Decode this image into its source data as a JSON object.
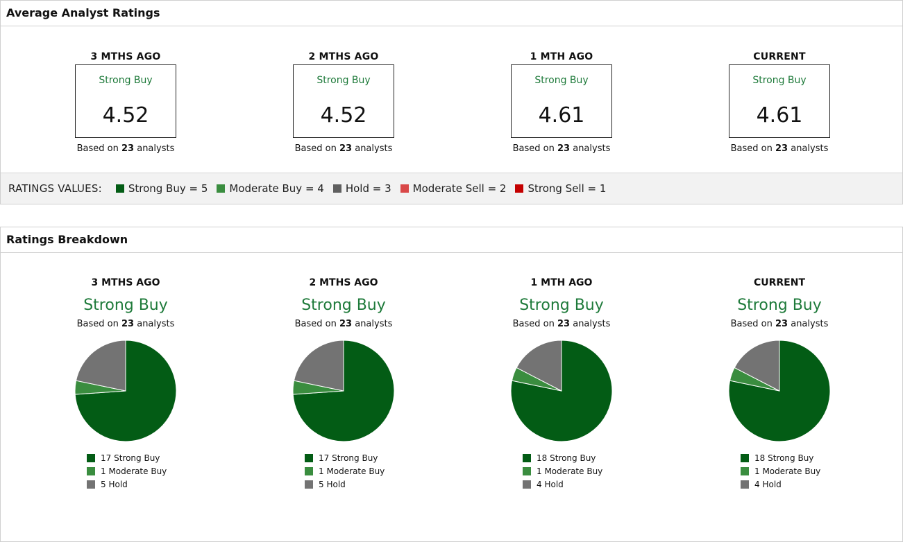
{
  "colors": {
    "strong_buy": "#035c15",
    "moderate_buy": "#3a8d3f",
    "hold": "#737373",
    "moderate_sell": "#d94848",
    "strong_sell": "#c40000",
    "accent_text": "#1e7a3a"
  },
  "avg_panel": {
    "title": "Average Analyst Ratings",
    "periods": [
      {
        "title": "3 MTHS AGO",
        "label": "Strong Buy",
        "score": "4.52",
        "based_prefix": "Based on ",
        "count": "23",
        "based_suffix": " analysts"
      },
      {
        "title": "2 MTHS AGO",
        "label": "Strong Buy",
        "score": "4.52",
        "based_prefix": "Based on ",
        "count": "23",
        "based_suffix": " analysts"
      },
      {
        "title": "1 MTH AGO",
        "label": "Strong Buy",
        "score": "4.61",
        "based_prefix": "Based on ",
        "count": "23",
        "based_suffix": " analysts"
      },
      {
        "title": "CURRENT",
        "label": "Strong Buy",
        "score": "4.61",
        "based_prefix": "Based on ",
        "count": "23",
        "based_suffix": " analysts"
      }
    ]
  },
  "ratings_values": {
    "title": "RATINGS VALUES:",
    "items": [
      {
        "label": "Strong Buy = 5",
        "color": "#035c15"
      },
      {
        "label": "Moderate Buy = 4",
        "color": "#3a8d3f"
      },
      {
        "label": "Hold = 3",
        "color": "#5f5f5f"
      },
      {
        "label": "Moderate Sell = 2",
        "color": "#d94848"
      },
      {
        "label": "Strong Sell = 1",
        "color": "#c40000"
      }
    ]
  },
  "breakdown_panel": {
    "title": "Ratings Breakdown",
    "periods": [
      {
        "title": "3 MTHS AGO",
        "label": "Strong Buy",
        "based_prefix": "Based on ",
        "count": "23",
        "based_suffix": " analysts",
        "legend": [
          "17 Strong Buy",
          "1 Moderate Buy",
          "5 Hold"
        ]
      },
      {
        "title": "2 MTHS AGO",
        "label": "Strong Buy",
        "based_prefix": "Based on ",
        "count": "23",
        "based_suffix": " analysts",
        "legend": [
          "17 Strong Buy",
          "1 Moderate Buy",
          "5 Hold"
        ]
      },
      {
        "title": "1 MTH AGO",
        "label": "Strong Buy",
        "based_prefix": "Based on ",
        "count": "23",
        "based_suffix": " analysts",
        "legend": [
          "18 Strong Buy",
          "1 Moderate Buy",
          "4 Hold"
        ]
      },
      {
        "title": "CURRENT",
        "label": "Strong Buy",
        "based_prefix": "Based on ",
        "count": "23",
        "based_suffix": " analysts",
        "legend": [
          "18 Strong Buy",
          "1 Moderate Buy",
          "4 Hold"
        ]
      }
    ]
  },
  "chart_data": [
    {
      "type": "pie",
      "categories": [
        "Strong Buy",
        "Moderate Buy",
        "Hold"
      ],
      "values": [
        17,
        1,
        5
      ]
    },
    {
      "type": "pie",
      "categories": [
        "Strong Buy",
        "Moderate Buy",
        "Hold"
      ],
      "values": [
        17,
        1,
        5
      ]
    },
    {
      "type": "pie",
      "categories": [
        "Strong Buy",
        "Moderate Buy",
        "Hold"
      ],
      "values": [
        18,
        1,
        4
      ]
    },
    {
      "type": "pie",
      "categories": [
        "Strong Buy",
        "Moderate Buy",
        "Hold"
      ],
      "values": [
        18,
        1,
        4
      ]
    }
  ]
}
